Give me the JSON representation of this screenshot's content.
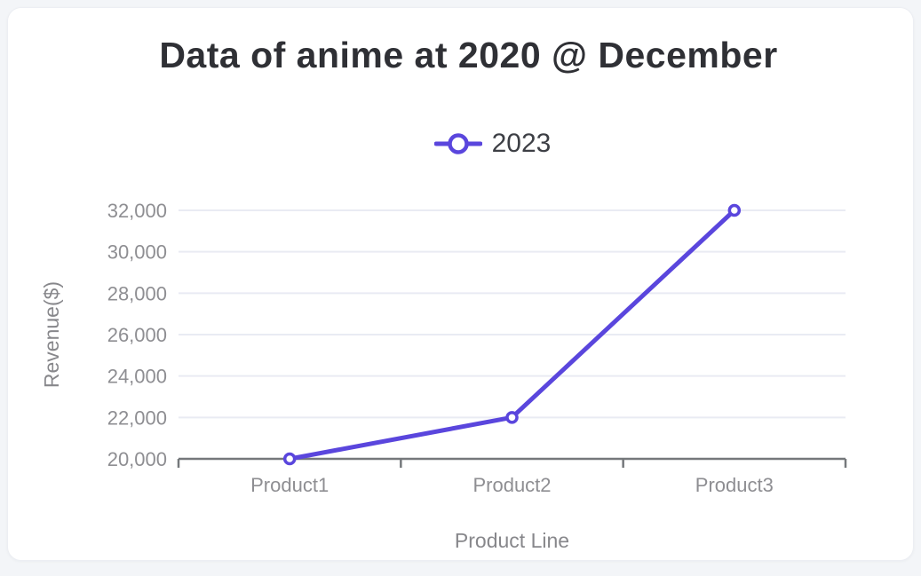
{
  "card": {
    "title": "Data of anime at 2020 @ December"
  },
  "chart_data": {
    "type": "line",
    "title": "Data of anime at 2020 @ December",
    "categories": [
      "Product1",
      "Product2",
      "Product3"
    ],
    "series": [
      {
        "name": "2023",
        "values": [
          20000,
          22000,
          32000
        ]
      }
    ],
    "xlabel": "Product Line",
    "ylabel": "Revenue($)",
    "ylim": [
      20000,
      32000
    ],
    "ytick_step": 2000,
    "ytick_labels": [
      "20,000",
      "22,000",
      "24,000",
      "26,000",
      "28,000",
      "30,000",
      "32,000"
    ],
    "grid": true,
    "legend_position": "top-center",
    "marker_style": "hollow-circle",
    "colors": {
      "series": "#5a46dd",
      "marker_fill": "#ffffff",
      "grid": "#e9ebf3",
      "axis": "#75787b",
      "tick_text": "#8e8e92",
      "axis_title_text": "#87878b",
      "title_text": "#2f3035",
      "legend_text": "#3d3f45",
      "card_bg": "#ffffff",
      "page_bg": "#f3f5f8"
    }
  }
}
